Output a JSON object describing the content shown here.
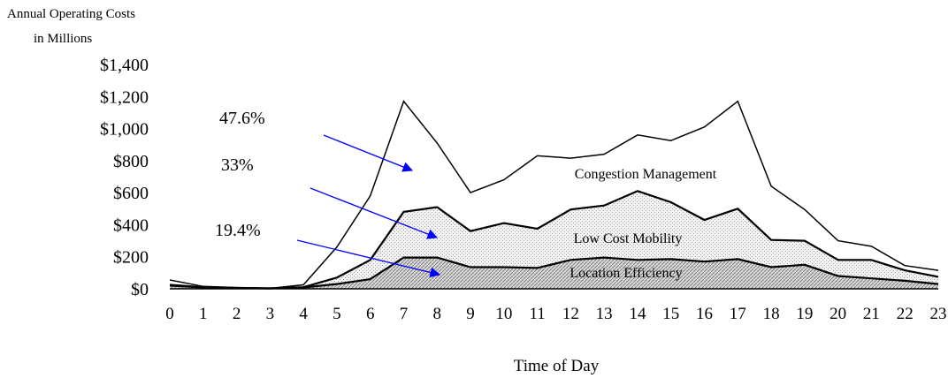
{
  "chart_data": {
    "type": "area",
    "title": "",
    "ylabel_line1": "Annual Operating Costs",
    "ylabel_line2": "in Millions",
    "xlabel": "Time of Day",
    "x": [
      0,
      1,
      2,
      3,
      4,
      5,
      6,
      7,
      8,
      9,
      10,
      11,
      12,
      13,
      14,
      15,
      16,
      17,
      18,
      19,
      20,
      21,
      22,
      23
    ],
    "ylim": [
      0,
      1400
    ],
    "yticks": [
      0,
      200,
      400,
      600,
      800,
      1000,
      1200,
      1400
    ],
    "ytick_labels": [
      "$0",
      "$200",
      "$400",
      "$600",
      "$800",
      "$1,000",
      "$1,200",
      "$1,400"
    ],
    "grid": false,
    "series": [
      {
        "name": "Location Efficiency",
        "values": [
          20,
          8,
          5,
          3,
          8,
          30,
          60,
          195,
          195,
          135,
          135,
          130,
          180,
          195,
          180,
          185,
          170,
          185,
          135,
          150,
          80,
          65,
          50,
          30
        ],
        "fill": "hatch"
      },
      {
        "name": "Low Cost Mobility",
        "values": [
          25,
          10,
          5,
          3,
          10,
          70,
          180,
          480,
          510,
          360,
          410,
          375,
          495,
          520,
          610,
          540,
          430,
          500,
          305,
          300,
          180,
          180,
          115,
          75
        ],
        "fill": "dots"
      },
      {
        "name": "Congestion Management",
        "values": [
          55,
          15,
          8,
          3,
          25,
          260,
          580,
          1170,
          910,
          600,
          680,
          830,
          815,
          840,
          960,
          925,
          1010,
          1170,
          640,
          495,
          300,
          265,
          145,
          115
        ],
        "fill": "white"
      }
    ],
    "annotations": [
      {
        "text": "47.6%"
      },
      {
        "text": "33%"
      },
      {
        "text": "19.4%"
      }
    ],
    "colors": {
      "arrow": "#0000ff",
      "line": "#000000",
      "dots": "#c8c8c8",
      "hatch": "#888888"
    }
  }
}
